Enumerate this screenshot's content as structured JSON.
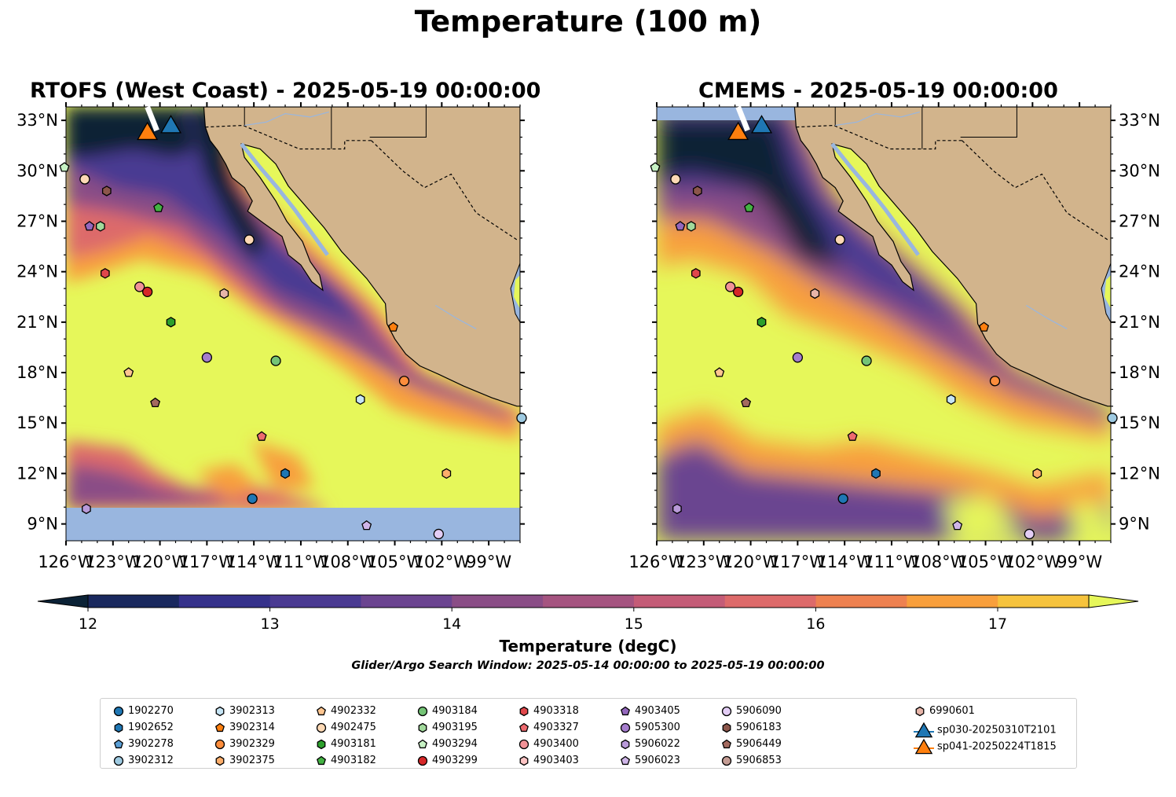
{
  "figure": {
    "title": "Temperature (100 m)",
    "panels": [
      {
        "title": "RTOFS (West Coast) - 2025-05-19 00:00:00"
      },
      {
        "title": "CMEMS - 2025-05-19 00:00:00"
      }
    ],
    "lon_ticks": [
      "126°W",
      "123°W",
      "120°W",
      "117°W",
      "114°W",
      "111°W",
      "108°W",
      "105°W",
      "102°W",
      "99°W"
    ],
    "lat_ticks": [
      "33°N",
      "30°N",
      "27°N",
      "24°N",
      "21°N",
      "18°N",
      "15°N",
      "12°N",
      "9°N"
    ],
    "colorbar": {
      "label": "Temperature (degC)",
      "ticks": [
        "12",
        "13",
        "14",
        "15",
        "16",
        "17"
      ],
      "colors": [
        "#0b2236",
        "#19285e",
        "#35318b",
        "#4a3a92",
        "#6b4490",
        "#8a4d86",
        "#a55480",
        "#c45c77",
        "#dd6a6a",
        "#ee8150",
        "#f89f3c",
        "#f6c33d",
        "#e6f75a"
      ]
    },
    "search_window": "Glider/Argo Search Window: 2025-05-14 00:00:00 to 2025-05-19 00:00:00",
    "colors": {
      "ocean_warm": "#e6f75a",
      "land": "#d2b48c",
      "water_body": "#99b6df"
    }
  },
  "legend": [
    {
      "label": "1902270",
      "marker": "circle",
      "color": "#1f77b4"
    },
    {
      "label": "1902652",
      "marker": "hexagon",
      "color": "#1f77b4"
    },
    {
      "label": "3902278",
      "marker": "pentagon",
      "color": "#5a9fd6"
    },
    {
      "label": "3902312",
      "marker": "circle",
      "color": "#9ecae1"
    },
    {
      "label": "3902313",
      "marker": "hexagon",
      "color": "#c6e5f5"
    },
    {
      "label": "3902314",
      "marker": "pentagon",
      "color": "#ff7f0e"
    },
    {
      "label": "3902329",
      "marker": "circle",
      "color": "#fd8d3c"
    },
    {
      "label": "3902375",
      "marker": "hexagon",
      "color": "#fdae6b"
    },
    {
      "label": "4902332",
      "marker": "pentagon",
      "color": "#fdc590"
    },
    {
      "label": "4902475",
      "marker": "circle",
      "color": "#fdd9b5"
    },
    {
      "label": "4903181",
      "marker": "hexagon",
      "color": "#2ca02c"
    },
    {
      "label": "4903182",
      "marker": "pentagon",
      "color": "#43b243"
    },
    {
      "label": "4903184",
      "marker": "circle",
      "color": "#74c476"
    },
    {
      "label": "4903195",
      "marker": "hexagon",
      "color": "#a1d99b"
    },
    {
      "label": "4903294",
      "marker": "pentagon",
      "color": "#c7f2c4"
    },
    {
      "label": "4903299",
      "marker": "circle",
      "color": "#d62728"
    },
    {
      "label": "4903318",
      "marker": "hexagon",
      "color": "#e0474b"
    },
    {
      "label": "4903327",
      "marker": "pentagon",
      "color": "#ee6a6f"
    },
    {
      "label": "4903400",
      "marker": "circle",
      "color": "#f29297"
    },
    {
      "label": "4903403",
      "marker": "hexagon",
      "color": "#fcc3c3"
    },
    {
      "label": "4903405",
      "marker": "pentagon",
      "color": "#9467bd"
    },
    {
      "label": "5905300",
      "marker": "circle",
      "color": "#a57dcd"
    },
    {
      "label": "5906022",
      "marker": "hexagon",
      "color": "#b99ad9"
    },
    {
      "label": "5906023",
      "marker": "pentagon",
      "color": "#cfb5e8"
    },
    {
      "label": "5906090",
      "marker": "circle",
      "color": "#e3cdf5"
    },
    {
      "label": "5906183",
      "marker": "hexagon",
      "color": "#8c564b"
    },
    {
      "label": "5906449",
      "marker": "pentagon",
      "color": "#a46a5f"
    },
    {
      "label": "5906853",
      "marker": "circle",
      "color": "#c49c94"
    },
    {
      "label": "6990601",
      "marker": "hexagon",
      "color": "#e7b5a9"
    },
    {
      "label": "sp030-20250310T2101",
      "marker": "triangle",
      "color": "#1f77b4"
    },
    {
      "label": "sp041-20250224T1815",
      "marker": "triangle",
      "color": "#ff7f0e"
    }
  ],
  "map_points": [
    {
      "id": "4903294",
      "lon": -126.1,
      "lat": 30.2
    },
    {
      "id": "4902475",
      "lon": -124.8,
      "lat": 29.5
    },
    {
      "id": "5906183",
      "lon": -123.4,
      "lat": 28.8
    },
    {
      "id": "4903182",
      "lon": -120.1,
      "lat": 27.8
    },
    {
      "id": "4903405",
      "lon": -124.5,
      "lat": 26.7
    },
    {
      "id": "4903195",
      "lon": -123.8,
      "lat": 26.7
    },
    {
      "id": "4902475",
      "lon": -114.3,
      "lat": 25.9
    },
    {
      "id": "4903318",
      "lon": -123.5,
      "lat": 23.9
    },
    {
      "id": "4903400",
      "lon": -121.3,
      "lat": 23.1
    },
    {
      "id": "4903299",
      "lon": -120.8,
      "lat": 22.8
    },
    {
      "id": "6990601",
      "lon": -115.9,
      "lat": 22.7
    },
    {
      "id": "4903181",
      "lon": -119.3,
      "lat": 21.0
    },
    {
      "id": "3902314",
      "lon": -105.1,
      "lat": 20.7
    },
    {
      "id": "5905300",
      "lon": -117.0,
      "lat": 18.9
    },
    {
      "id": "4903184",
      "lon": -112.6,
      "lat": 18.7
    },
    {
      "id": "4902332",
      "lon": -122.0,
      "lat": 18.0
    },
    {
      "id": "3902329",
      "lon": -104.4,
      "lat": 17.5
    },
    {
      "id": "5906449",
      "lon": -120.3,
      "lat": 16.2
    },
    {
      "id": "3902313",
      "lon": -107.2,
      "lat": 16.4
    },
    {
      "id": "3902312",
      "lon": -96.9,
      "lat": 15.3
    },
    {
      "id": "4903327",
      "lon": -113.5,
      "lat": 14.2
    },
    {
      "id": "1902652",
      "lon": -112.0,
      "lat": 12.0
    },
    {
      "id": "3902375",
      "lon": -101.7,
      "lat": 12.0
    },
    {
      "id": "1902270",
      "lon": -114.1,
      "lat": 10.5
    },
    {
      "id": "5906022",
      "lon": -124.7,
      "lat": 9.9
    },
    {
      "id": "5906023",
      "lon": -106.8,
      "lat": 8.9
    },
    {
      "id": "5906090",
      "lon": -102.2,
      "lat": 8.4
    },
    {
      "id": "sp030-20250310T2101",
      "lon": -119.3,
      "lat": 32.7
    },
    {
      "id": "sp041-20250224T1815",
      "lon": -120.8,
      "lat": 32.3
    }
  ]
}
